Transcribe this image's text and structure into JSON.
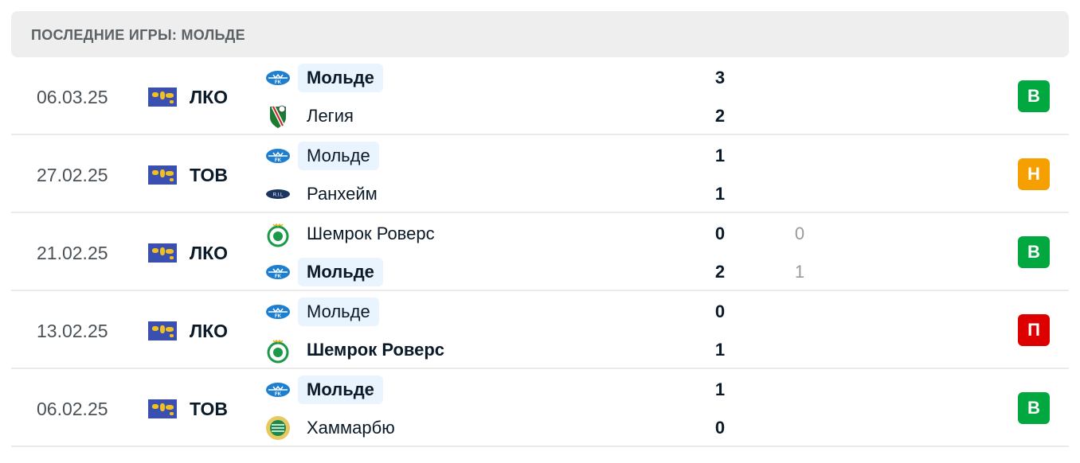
{
  "header": {
    "title": "ПОСЛЕДНИЕ ИГРЫ: МОЛЬДЕ"
  },
  "colors": {
    "win": "#00a83f",
    "draw": "#f5a000",
    "loss": "#dc0000",
    "highlight": "#eaf4ff"
  },
  "matches": [
    {
      "date": "06.03.25",
      "league": "ЛКО",
      "league_icon": "world-flag-icon",
      "result": "В",
      "result_type": "win",
      "home": {
        "name": "Мольде",
        "logo": "molde-logo",
        "score": "3",
        "highlight": true,
        "bold": true
      },
      "away": {
        "name": "Легия",
        "logo": "legia-logo",
        "score": "2",
        "highlight": false,
        "bold": false
      }
    },
    {
      "date": "27.02.25",
      "league": "ТОВ",
      "league_icon": "world-flag-icon",
      "result": "Н",
      "result_type": "draw",
      "home": {
        "name": "Мольде",
        "logo": "molde-logo",
        "score": "1",
        "highlight": true,
        "bold": false
      },
      "away": {
        "name": "Ранхейм",
        "logo": "ranheim-logo",
        "score": "1",
        "highlight": false,
        "bold": false
      }
    },
    {
      "date": "21.02.25",
      "league": "ЛКО",
      "league_icon": "world-flag-icon",
      "result": "В",
      "result_type": "win",
      "home": {
        "name": "Шемрок Роверс",
        "logo": "shamrock-logo",
        "score": "0",
        "agg": "0",
        "highlight": false,
        "bold": false
      },
      "away": {
        "name": "Мольде",
        "logo": "molde-logo",
        "score": "2",
        "agg": "1",
        "highlight": true,
        "bold": true
      }
    },
    {
      "date": "13.02.25",
      "league": "ЛКО",
      "league_icon": "world-flag-icon",
      "result": "П",
      "result_type": "loss",
      "home": {
        "name": "Мольде",
        "logo": "molde-logo",
        "score": "0",
        "highlight": true,
        "bold": false
      },
      "away": {
        "name": "Шемрок Роверс",
        "logo": "shamrock-logo",
        "score": "1",
        "highlight": false,
        "bold": true
      }
    },
    {
      "date": "06.02.25",
      "league": "ТОВ",
      "league_icon": "world-flag-icon",
      "result": "В",
      "result_type": "win",
      "home": {
        "name": "Мольде",
        "logo": "molde-logo",
        "score": "1",
        "highlight": true,
        "bold": true
      },
      "away": {
        "name": "Хаммарбю",
        "logo": "hammarby-logo",
        "score": "0",
        "highlight": false,
        "bold": false
      }
    }
  ]
}
